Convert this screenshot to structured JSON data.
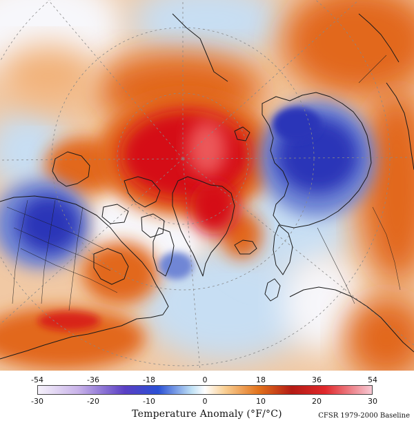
{
  "map": {
    "colors": {
      "strong_warm": "#d50d12",
      "warm": "#e2671b",
      "mild_warm": "#f2b27a",
      "neutral": "#f7f7fb",
      "mild_cold": "#c7def3",
      "cold": "#6f86d5",
      "strong_cold": "#2a36b8",
      "coastline": "#1a1a1a",
      "graticule": "#888888"
    }
  },
  "legend": {
    "fahrenheit_ticks": [
      "-54",
      "-36",
      "-18",
      "0",
      "18",
      "36",
      "54"
    ],
    "celsius_ticks": [
      "-30",
      "-20",
      "-10",
      "0",
      "10",
      "20",
      "30"
    ],
    "title": "Temperature Anomaly (°F/°C)",
    "baseline_note": "CFSR 1979-2000 Baseline",
    "gradient": [
      {
        "stop": 0.0,
        "color": "#f6f2fb"
      },
      {
        "stop": 0.12,
        "color": "#c9b3e9"
      },
      {
        "stop": 0.26,
        "color": "#5a3fc4"
      },
      {
        "stop": 0.36,
        "color": "#2a4fd4"
      },
      {
        "stop": 0.46,
        "color": "#bfe0f5"
      },
      {
        "stop": 0.5,
        "color": "#ffffff"
      },
      {
        "stop": 0.56,
        "color": "#f9cf93"
      },
      {
        "stop": 0.66,
        "color": "#e2731c"
      },
      {
        "stop": 0.76,
        "color": "#b41b14"
      },
      {
        "stop": 0.86,
        "color": "#e0282b"
      },
      {
        "stop": 1.0,
        "color": "#f7c9d4"
      }
    ]
  }
}
